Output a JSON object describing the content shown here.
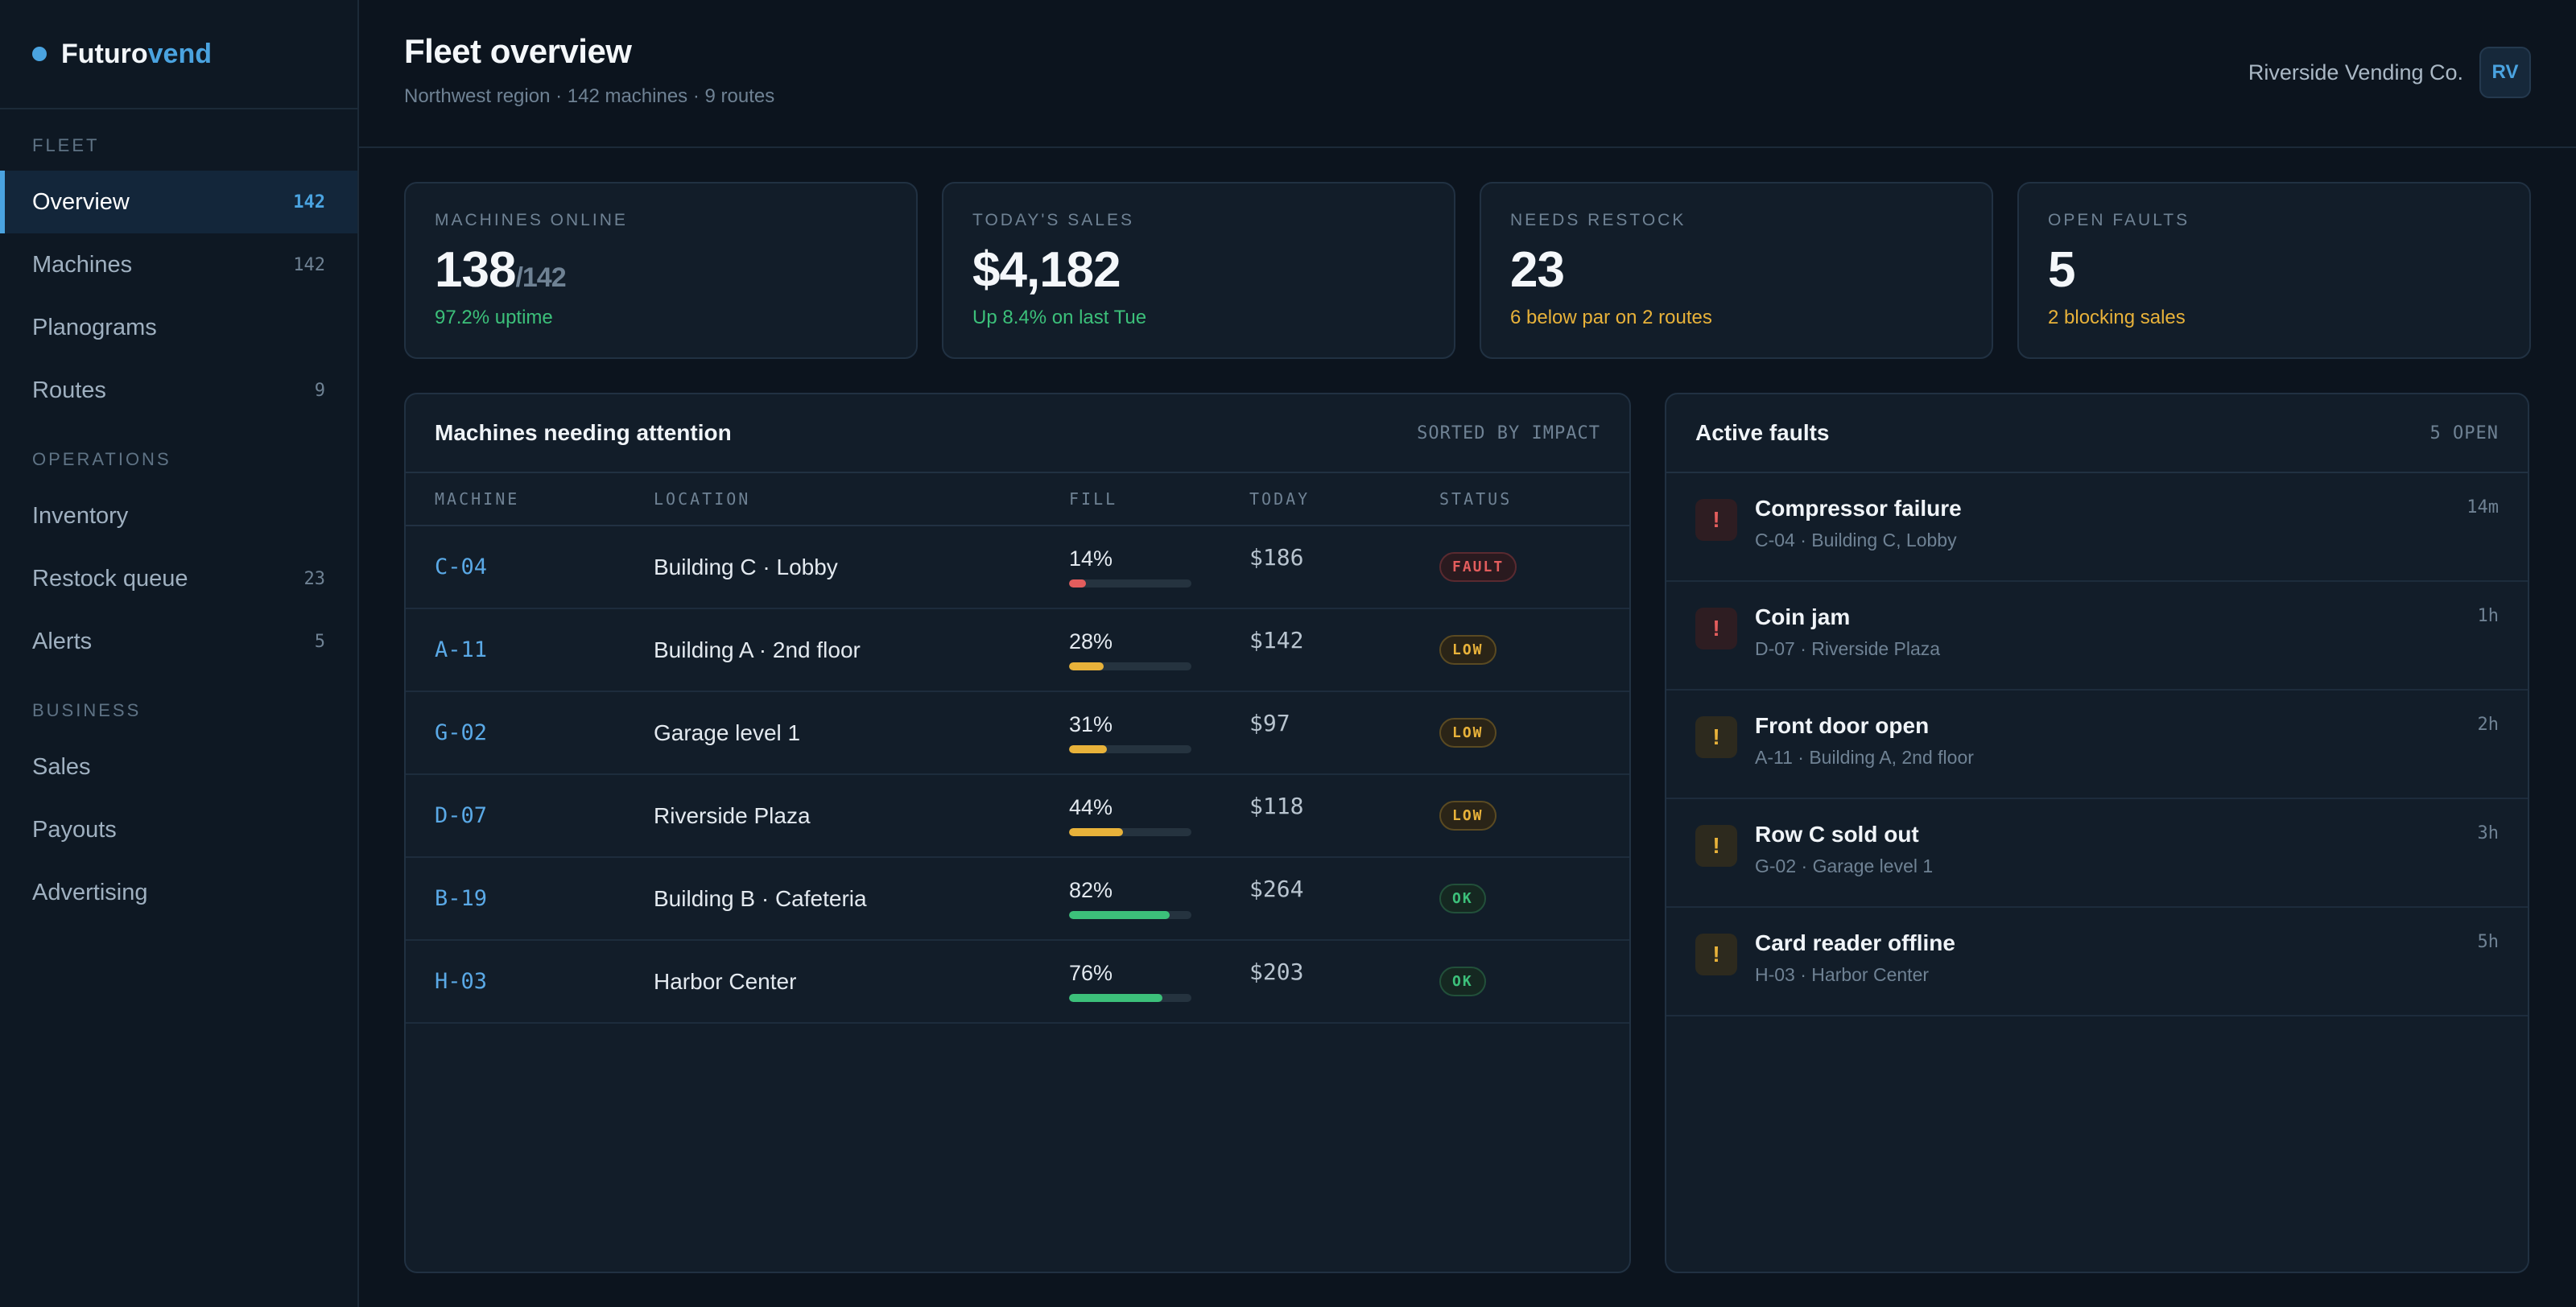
{
  "brand": {
    "name_main": "Futuro",
    "name_accent": "vend"
  },
  "colors": {
    "accent": "#4aa3e0",
    "good": "#3cc07a",
    "warn": "#e8b23a",
    "bad": "#e35d5d"
  },
  "sidebar": {
    "sections": [
      {
        "title": "FLEET",
        "items": [
          {
            "label": "Overview",
            "count": "142",
            "active": true
          },
          {
            "label": "Machines",
            "count": "142"
          },
          {
            "label": "Planograms",
            "count": ""
          },
          {
            "label": "Routes",
            "count": "9"
          }
        ]
      },
      {
        "title": "OPERATIONS",
        "items": [
          {
            "label": "Inventory",
            "count": ""
          },
          {
            "label": "Restock queue",
            "count": "23"
          },
          {
            "label": "Alerts",
            "count": "5"
          }
        ]
      },
      {
        "title": "BUSINESS",
        "items": [
          {
            "label": "Sales",
            "count": ""
          },
          {
            "label": "Payouts",
            "count": ""
          },
          {
            "label": "Advertising",
            "count": ""
          }
        ]
      }
    ]
  },
  "header": {
    "title": "Fleet overview",
    "subtitle": "Northwest region · 142 machines · 9 routes",
    "org": "Riverside Vending Co.",
    "avatar": "RV"
  },
  "stats": [
    {
      "label": "MACHINES ONLINE",
      "value": "138",
      "total": "/142",
      "note": "97.2% uptime",
      "tone": "green"
    },
    {
      "label": "TODAY'S SALES",
      "value": "$4,182",
      "total": "",
      "note": "Up 8.4% on last Tue",
      "tone": "green"
    },
    {
      "label": "NEEDS RESTOCK",
      "value": "23",
      "total": "",
      "note": "6 below par on 2 routes",
      "tone": "amber"
    },
    {
      "label": "OPEN FAULTS",
      "value": "5",
      "total": "",
      "note": "2 blocking sales",
      "tone": "amber"
    }
  ],
  "attention": {
    "title": "Machines needing attention",
    "meta": "SORTED BY IMPACT",
    "columns": [
      "MACHINE",
      "LOCATION",
      "FILL",
      "TODAY",
      "STATUS"
    ],
    "rows": [
      {
        "machine": "C-04",
        "location": "Building C · Lobby",
        "fill": 14,
        "today": "$186",
        "status": "FAULT"
      },
      {
        "machine": "A-11",
        "location": "Building A · 2nd floor",
        "fill": 28,
        "today": "$142",
        "status": "LOW"
      },
      {
        "machine": "G-02",
        "location": "Garage level 1",
        "fill": 31,
        "today": "$97",
        "status": "LOW"
      },
      {
        "machine": "D-07",
        "location": "Riverside Plaza",
        "fill": 44,
        "today": "$118",
        "status": "LOW"
      },
      {
        "machine": "B-19",
        "location": "Building B · Cafeteria",
        "fill": 82,
        "today": "$264",
        "status": "OK"
      },
      {
        "machine": "H-03",
        "location": "Harbor Center",
        "fill": 76,
        "today": "$203",
        "status": "OK"
      }
    ]
  },
  "faults": {
    "title": "Active faults",
    "meta": "5 OPEN",
    "items": [
      {
        "title": "Compressor failure",
        "sub": "C-04 · Building C, Lobby",
        "time": "14m",
        "severity": "red",
        "icon": "exclamation-icon"
      },
      {
        "title": "Coin jam",
        "sub": "D-07 · Riverside Plaza",
        "time": "1h",
        "severity": "red",
        "icon": "exclamation-icon"
      },
      {
        "title": "Front door open",
        "sub": "A-11 · Building A, 2nd floor",
        "time": "2h",
        "severity": "amber",
        "icon": "exclamation-icon"
      },
      {
        "title": "Row C sold out",
        "sub": "G-02 · Garage level 1",
        "time": "3h",
        "severity": "amber",
        "icon": "exclamation-icon"
      },
      {
        "title": "Card reader offline",
        "sub": "H-03 · Harbor Center",
        "time": "5h",
        "severity": "amber",
        "icon": "exclamation-icon"
      }
    ]
  }
}
